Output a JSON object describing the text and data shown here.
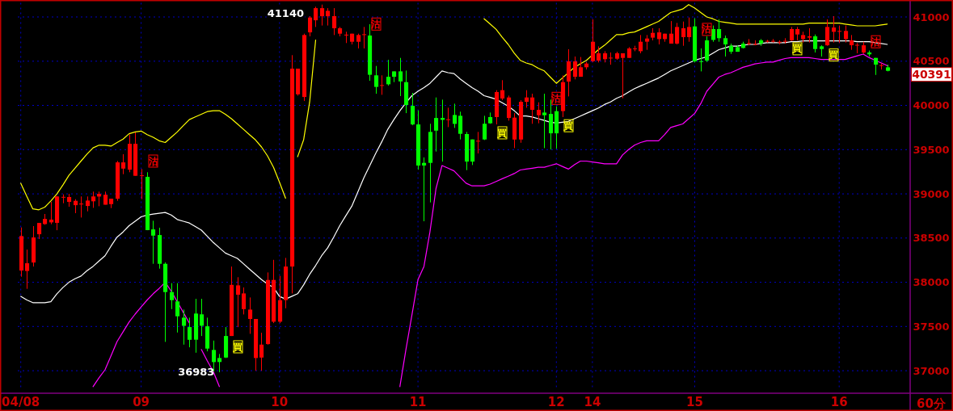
{
  "chart_data": {
    "type": "candlestick",
    "categories": [
      "04/08",
      null,
      null,
      null,
      null,
      null,
      null,
      null,
      null,
      null,
      null,
      null,
      null,
      null,
      null,
      null,
      null,
      null,
      null,
      null,
      "09",
      null,
      null,
      null,
      null,
      null,
      null,
      null,
      null,
      null,
      null,
      null,
      null,
      null,
      null,
      null,
      null,
      null,
      null,
      null,
      null,
      null,
      null,
      "10",
      null,
      null,
      null,
      null,
      null,
      null,
      null,
      null,
      null,
      null,
      null,
      null,
      null,
      null,
      null,
      null,
      null,
      null,
      null,
      null,
      null,
      null,
      "11",
      null,
      null,
      null,
      null,
      null,
      null,
      null,
      null,
      null,
      null,
      null,
      null,
      null,
      null,
      null,
      null,
      null,
      null,
      null,
      null,
      null,
      null,
      "12",
      null,
      null,
      null,
      null,
      null,
      "14",
      null,
      null,
      null,
      null,
      null,
      null,
      null,
      null,
      null,
      null,
      null,
      null,
      null,
      null,
      null,
      null,
      "15",
      null,
      null,
      null,
      null,
      null,
      null,
      null,
      null,
      null,
      null,
      null,
      null,
      null,
      null,
      null,
      null,
      null,
      null,
      null,
      null,
      null,
      null,
      null,
      "16",
      null,
      null,
      null,
      null,
      null,
      null,
      null,
      null
    ],
    "ohlc": [
      [
        38133,
        38620,
        38063,
        38522
      ],
      [
        38127,
        38370,
        37926,
        38215
      ],
      [
        38224,
        38635,
        38178,
        38507
      ],
      [
        38543,
        38671,
        38489,
        38671
      ],
      [
        38659,
        38772,
        38650,
        38717
      ],
      [
        38677,
        38909,
        38656,
        38708
      ],
      [
        38671,
        38976,
        38589,
        38970
      ],
      [
        38960,
        38994,
        38894,
        38966
      ],
      [
        38909,
        39000,
        38854,
        38964
      ],
      [
        38872,
        38939,
        38781,
        38921
      ],
      [
        38880,
        38970,
        38732,
        38890
      ],
      [
        38863,
        38970,
        38802,
        38924
      ],
      [
        38915,
        39025,
        38842,
        38970
      ],
      [
        38970,
        39025,
        38860,
        39000
      ],
      [
        38878,
        39025,
        38878,
        38990
      ],
      [
        38884,
        38945,
        38839,
        38945
      ],
      [
        38945,
        39371,
        38921,
        39356
      ],
      [
        39286,
        39448,
        39222,
        39356
      ],
      [
        39274,
        39670,
        39244,
        39566
      ],
      [
        39204,
        39694,
        39204,
        39566
      ],
      [
        39204,
        39280,
        38940,
        39210
      ],
      [
        39192,
        39244,
        38589,
        38589
      ],
      [
        38598,
        38696,
        38209,
        38528
      ],
      [
        38534,
        38617,
        38154,
        38209
      ],
      [
        38209,
        38224,
        37326,
        37889
      ],
      [
        37889,
        37990,
        37697,
        37798
      ],
      [
        37783,
        37990,
        37432,
        37615
      ],
      [
        37600,
        37691,
        37295,
        37508
      ],
      [
        37493,
        37600,
        37265,
        37350
      ],
      [
        37646,
        37813,
        37204,
        37350
      ],
      [
        37637,
        37813,
        37393,
        37508
      ],
      [
        37502,
        37600,
        37219,
        37250
      ],
      [
        37235,
        37341,
        36990,
        37098
      ],
      [
        37143,
        37189,
        36983,
        37098
      ],
      [
        37393,
        37493,
        37143,
        37149
      ],
      [
        37393,
        38178,
        37393,
        37971
      ],
      [
        37859,
        38057,
        37493,
        37965
      ],
      [
        37697,
        37941,
        37636,
        37874
      ],
      [
        37585,
        37828,
        37417,
        37691
      ],
      [
        37143,
        37585,
        37000,
        37585
      ],
      [
        37149,
        37429,
        37000,
        37295
      ],
      [
        37301,
        38111,
        37295,
        38026
      ],
      [
        37554,
        38254,
        37539,
        38026
      ],
      [
        37554,
        38072,
        37539,
        37798
      ],
      [
        37798,
        38276,
        37706,
        38178
      ],
      [
        38178,
        40568,
        37874,
        40416
      ],
      [
        40126,
        40416,
        40111,
        40416
      ],
      [
        40096,
        40811,
        40050,
        40796
      ],
      [
        40826,
        41009,
        40781,
        40994
      ],
      [
        40963,
        41116,
        40887,
        41100
      ],
      [
        41009,
        41140,
        40903,
        41100
      ],
      [
        41009,
        41100,
        40903,
        41070
      ],
      [
        40872,
        41100,
        40796,
        41009
      ],
      [
        40811,
        40887,
        40781,
        40872
      ],
      [
        40796,
        40833,
        40705,
        40800
      ],
      [
        40720,
        40811,
        40690,
        40811
      ],
      [
        40720,
        40811,
        40644,
        40796
      ],
      [
        40800,
        40887,
        40644,
        40805
      ],
      [
        40790,
        40918,
        40279,
        40346
      ],
      [
        40340,
        40446,
        40132,
        40209
      ],
      [
        40230,
        40340,
        40120,
        40230
      ],
      [
        40324,
        40516,
        40224,
        40239
      ],
      [
        40385,
        40385,
        40263,
        40324
      ],
      [
        40385,
        40537,
        40105,
        40272
      ],
      [
        40263,
        40394,
        39913,
        40005
      ],
      [
        39995,
        40142,
        39776,
        39785
      ],
      [
        39785,
        39944,
        39274,
        39320
      ],
      [
        39350,
        39411,
        38690,
        39320
      ],
      [
        39700,
        39792,
        38903,
        39350
      ],
      [
        39858,
        40090,
        39478,
        39715
      ],
      [
        39858,
        40065,
        39365,
        39837
      ],
      [
        39843,
        39974,
        39755,
        39843
      ],
      [
        39892,
        40020,
        39746,
        39792
      ],
      [
        39883,
        39929,
        39615,
        39679
      ],
      [
        39676,
        39700,
        39268,
        39365
      ],
      [
        39615,
        39615,
        39326,
        39365
      ],
      [
        39600,
        39700,
        39457,
        39600
      ],
      [
        39792,
        39883,
        39609,
        39615
      ],
      [
        39868,
        39919,
        39792,
        39798
      ],
      [
        39868,
        40172,
        39785,
        40151
      ],
      [
        40078,
        40285,
        40059,
        40172
      ],
      [
        39858,
        40111,
        39828,
        40090
      ],
      [
        39615,
        39913,
        39517,
        39862
      ],
      [
        39615,
        40059,
        39578,
        40041
      ],
      [
        40041,
        40172,
        39974,
        40090
      ],
      [
        39950,
        40132,
        39792,
        40090
      ],
      [
        39889,
        40035,
        39798,
        39950
      ],
      [
        39919,
        40132,
        39517,
        39889
      ],
      [
        39904,
        40065,
        39502,
        39685
      ],
      [
        39935,
        39989,
        39511,
        39685
      ],
      [
        39935,
        40339,
        39868,
        40263
      ],
      [
        40270,
        40635,
        40102,
        40498
      ],
      [
        40324,
        40553,
        40294,
        40498
      ],
      [
        40324,
        40547,
        40324,
        40431
      ],
      [
        40431,
        40492,
        40406,
        40473
      ],
      [
        40501,
        40973,
        40489,
        40720
      ],
      [
        40507,
        40668,
        40486,
        40589
      ],
      [
        40522,
        40613,
        40486,
        40589
      ],
      [
        40540,
        40598,
        40461,
        40540
      ],
      [
        40528,
        40607,
        40516,
        40589
      ],
      [
        40537,
        40589,
        40081,
        40589
      ],
      [
        40537,
        40659,
        40537,
        40644
      ],
      [
        40640,
        40674,
        40613,
        40644
      ],
      [
        40613,
        40796,
        40589,
        40720
      ],
      [
        40720,
        40796,
        40629,
        40756
      ],
      [
        40766,
        40872,
        40735,
        40820
      ],
      [
        40750,
        40872,
        40690,
        40826
      ],
      [
        40750,
        40811,
        40720,
        40811
      ],
      [
        40699,
        40954,
        40699,
        40811
      ],
      [
        40699,
        40933,
        40690,
        40887
      ],
      [
        40772,
        40948,
        40674,
        40872
      ],
      [
        40772,
        40994,
        40720,
        40887
      ],
      [
        40893,
        40985,
        40486,
        40498
      ],
      [
        40500,
        40644,
        40385,
        40498
      ],
      [
        40735,
        40781,
        40492,
        40507
      ],
      [
        40863,
        40903,
        40720,
        40741
      ],
      [
        40863,
        40973,
        40720,
        40760
      ],
      [
        40760,
        40790,
        40553,
        40690
      ],
      [
        40674,
        40699,
        40583,
        40607
      ],
      [
        40659,
        40680,
        40607,
        40607
      ],
      [
        40699,
        40720,
        40644,
        40650
      ],
      [
        40705,
        40750,
        40680,
        40705
      ],
      [
        40695,
        40735,
        40680,
        40695
      ],
      [
        40735,
        40750,
        40674,
        40699
      ],
      [
        40730,
        40741,
        40711,
        40730
      ],
      [
        40730,
        40750,
        40711,
        40730
      ],
      [
        40720,
        40735,
        40690,
        40720
      ],
      [
        40730,
        40760,
        40699,
        40730
      ],
      [
        40735,
        40887,
        40729,
        40863
      ],
      [
        40802,
        40887,
        40735,
        40863
      ],
      [
        40750,
        40833,
        40711,
        40796
      ],
      [
        40766,
        40872,
        40711,
        40781
      ],
      [
        40781,
        40802,
        40598,
        40638
      ],
      [
        40668,
        40680,
        40553,
        40638
      ],
      [
        40680,
        40973,
        40674,
        40887
      ],
      [
        40833,
        41009,
        40711,
        40881
      ],
      [
        40840,
        40903,
        40705,
        40842
      ],
      [
        40750,
        40903,
        40711,
        40842
      ],
      [
        40680,
        40796,
        40629,
        40735
      ],
      [
        40680,
        40705,
        40589,
        40685
      ],
      [
        40598,
        40720,
        40583,
        40680
      ],
      [
        40598,
        40620,
        40553,
        40577
      ],
      [
        40537,
        40537,
        40345,
        40461
      ],
      [
        40455,
        40473,
        40406,
        40455
      ],
      [
        40430,
        40461,
        40385,
        40391
      ]
    ],
    "colors": [
      "#ff0000",
      "#ff0000",
      "#ff0000",
      "#ff0000",
      "#ff0000",
      "#ff0000",
      "#ff0000",
      "#ff0000",
      "#ff0000",
      "#ff0000",
      "#ff0000",
      "#ff0000",
      "#ff0000",
      "#ff0000",
      "#ff0000",
      "#ff0000",
      "#ff0000",
      "#ff0000",
      "#ff0000",
      "#ff0000",
      "#ff0000",
      "#00ff00",
      "#00ff00",
      "#00ff00",
      "#00ff00",
      "#00ff00",
      "#00ff00",
      "#00ff00",
      "#00ff00",
      "#00ff00",
      "#00ff00",
      "#00ff00",
      "#00ff00",
      "#00ff00",
      "#00ff00",
      "#ff0000",
      "#ff0000",
      "#ff0000",
      "#ff0000",
      "#ff0000",
      "#ff0000",
      "#ff0000",
      "#ff0000",
      "#ff0000",
      "#ff0000",
      "#ff0000",
      "#ff0000",
      "#ff0000",
      "#ff0000",
      "#ff0000",
      "#ff0000",
      "#ff0000",
      "#ff0000",
      "#ff0000",
      "#ff0000",
      "#ff0000",
      "#ff0000",
      "#ff0000",
      "#00ff00",
      "#00ff00",
      "#ff0000",
      "#00ff00",
      "#00ff00",
      "#00ff00",
      "#00ff00",
      "#00ff00",
      "#00ff00",
      "#00ff00",
      "#00ff00",
      "#00ff00",
      "#00ff00",
      "#ff0000",
      "#00ff00",
      "#00ff00",
      "#00ff00",
      "#00ff00",
      "#ff0000",
      "#00ff00",
      "#00ff00",
      "#ff0000",
      "#ff0000",
      "#ff0000",
      "#ff0000",
      "#ff0000",
      "#ff0000",
      "#ff0000",
      "#ff0000",
      "#00ff00",
      "#00ff00",
      "#00ff00",
      "#ff0000",
      "#ff0000",
      "#ff0000",
      "#ff0000",
      "#ff0000",
      "#ff0000",
      "#ff0000",
      "#ff0000",
      "#ff0000",
      "#ff0000",
      "#ff0000",
      "#ff0000",
      "#ff0000",
      "#ff0000",
      "#ff0000",
      "#ff0000",
      "#ff0000",
      "#ff0000",
      "#ff0000",
      "#ff0000",
      "#ff0000",
      "#ff0000",
      "#00ff00",
      "#00ff00",
      "#00ff00",
      "#00ff00",
      "#00ff00",
      "#00ff00",
      "#00ff00",
      "#00ff00",
      "#00ff00",
      "#ff0000",
      "#ff0000",
      "#00ff00",
      "#ff0000",
      "#ff0000",
      "#ff0000",
      "#ff0000",
      "#ff0000",
      "#ff0000",
      "#ff0000",
      "#ff0000",
      "#00ff00",
      "#00ff00",
      "#ff0000",
      "#ff0000",
      "#ff0000",
      "#ff0000",
      "#ff0000",
      "#ff0000",
      "#ff0000",
      "#00ff00",
      "#00ff00",
      "#ff0000",
      "#00ff00"
    ],
    "series": [
      {
        "type": "line",
        "color": "#ffff00",
        "values": [
          39120,
          38970,
          38830,
          38820,
          38850,
          38920,
          39000,
          39100,
          39210,
          39290,
          39370,
          39450,
          39520,
          39550,
          39550,
          39540,
          39580,
          39620,
          39680,
          39700,
          39710,
          39670,
          39640,
          39600,
          39580,
          39640,
          39700,
          39770,
          39840,
          39870,
          39900,
          39930,
          39940,
          39940,
          39900,
          39850,
          39790,
          39730,
          39670,
          39610,
          39530,
          39430,
          39300,
          39130,
          38950,
          null,
          39420,
          39610,
          40040,
          40740,
          null,
          null,
          null,
          null,
          null,
          null,
          null,
          null,
          null,
          null,
          null,
          null,
          null,
          null,
          null,
          null,
          null,
          null,
          null,
          null,
          null,
          null,
          null,
          null,
          null,
          null,
          null,
          40980,
          40920,
          40860,
          40770,
          40690,
          40590,
          40510,
          40480,
          40460,
          40420,
          40390,
          40320,
          40250,
          40310,
          40370,
          40430,
          40470,
          40510,
          40570,
          40630,
          40680,
          40740,
          40800,
          40800,
          40820,
          40830,
          40860,
          40890,
          40920,
          40950,
          41000,
          41050,
          41070,
          41090,
          41140,
          41100,
          41050,
          41000,
          40980,
          40950,
          40940,
          40930,
          40920,
          40920,
          40920,
          40920,
          40920,
          40920,
          40920,
          40920,
          40920,
          40920,
          40920,
          40920,
          40930,
          40930,
          40930,
          40930,
          40930,
          40930,
          40920,
          40910,
          40900,
          40900,
          40900,
          40900,
          40910,
          40920
        ]
      },
      {
        "type": "line",
        "color": "#ffffff",
        "values": [
          37840,
          37800,
          37770,
          37770,
          37770,
          37780,
          37870,
          37940,
          38000,
          38040,
          38070,
          38130,
          38180,
          38240,
          38300,
          38410,
          38510,
          38570,
          38640,
          38690,
          38740,
          38760,
          38770,
          38780,
          38790,
          38760,
          38710,
          38690,
          38670,
          38630,
          38590,
          38520,
          38450,
          38390,
          38330,
          38300,
          38270,
          38210,
          38150,
          38090,
          38030,
          37980,
          37940,
          37840,
          37810,
          37840,
          37870,
          37970,
          38090,
          38190,
          38300,
          38390,
          38510,
          38640,
          38750,
          38860,
          39020,
          39180,
          39320,
          39460,
          39590,
          39730,
          39840,
          39940,
          40030,
          40110,
          40160,
          40200,
          40250,
          40320,
          40390,
          40370,
          40360,
          40300,
          40250,
          40200,
          40160,
          40110,
          40090,
          40070,
          40030,
          39990,
          39940,
          39880,
          39880,
          39870,
          39850,
          39830,
          39810,
          39800,
          39810,
          39820,
          39850,
          39880,
          39910,
          39940,
          39970,
          40010,
          40040,
          40080,
          40110,
          40150,
          40190,
          40220,
          40250,
          40280,
          40310,
          40350,
          40390,
          40420,
          40450,
          40480,
          40510,
          40530,
          40550,
          40590,
          40630,
          40650,
          40670,
          40670,
          40680,
          40690,
          40690,
          40700,
          40710,
          40710,
          40710,
          40710,
          40720,
          40720,
          40730,
          40730,
          40730,
          40730,
          40730,
          40730,
          40730,
          40730,
          40730,
          40720,
          40720,
          40720,
          40710,
          40700,
          40690
        ]
      },
      {
        "type": "line",
        "color": "#ff00ff",
        "values": [
          null,
          null,
          null,
          null,
          null,
          null,
          null,
          null,
          null,
          null,
          null,
          null,
          36820,
          36920,
          37010,
          37170,
          37330,
          37440,
          37550,
          37640,
          37720,
          37800,
          37870,
          37930,
          38000,
          37900,
          37780,
          37660,
          37540,
          null,
          37240,
          37110,
          36990,
          36820,
          null,
          null,
          null,
          null,
          null,
          null,
          null,
          null,
          null,
          null,
          null,
          null,
          null,
          null,
          null,
          null,
          null,
          null,
          null,
          null,
          null,
          null,
          null,
          null,
          null,
          null,
          null,
          null,
          null,
          36820,
          37240,
          37630,
          38030,
          38180,
          38570,
          39060,
          39320,
          39290,
          39260,
          39190,
          39120,
          39090,
          39090,
          39090,
          39110,
          39140,
          39170,
          39200,
          39230,
          39270,
          39280,
          39290,
          39300,
          39300,
          39320,
          39340,
          39310,
          39280,
          39330,
          39370,
          39370,
          39360,
          39350,
          39340,
          39340,
          39340,
          39440,
          39500,
          39550,
          39580,
          39600,
          39600,
          39600,
          39670,
          39750,
          39770,
          39790,
          39850,
          39910,
          40020,
          40160,
          40240,
          40320,
          40350,
          40370,
          40400,
          40430,
          40450,
          40470,
          40480,
          40490,
          40490,
          40510,
          40530,
          40540,
          40540,
          40540,
          40540,
          40530,
          40520,
          40520,
          40520,
          40520,
          40520,
          40540,
          40560,
          40580,
          40540,
          40510,
          40480,
          40450
        ]
      },
      {
        "type": "scatter",
        "name": "沽",
        "color": "#ff0000",
        "values": [
          null,
          null,
          null,
          null,
          null,
          null,
          null,
          null,
          null,
          null,
          null,
          null,
          null,
          null,
          null,
          null,
          null,
          null,
          null,
          null,
          null,
          null,
          39370,
          null,
          null,
          null,
          null,
          null,
          null,
          null,
          null,
          null,
          null,
          null,
          null,
          null,
          null,
          null,
          null,
          null,
          null,
          null,
          null,
          null,
          null,
          null,
          null,
          null,
          null,
          null,
          null,
          null,
          null,
          null,
          null,
          null,
          null,
          null,
          null,
          40920,
          null,
          null,
          null,
          null,
          null,
          null,
          null,
          null,
          null,
          null,
          null,
          null,
          null,
          null,
          null,
          null,
          null,
          null,
          null,
          null,
          null,
          null,
          null,
          null,
          null,
          null,
          null,
          null,
          null,
          40080,
          null,
          null,
          null,
          null,
          null,
          null,
          null,
          null,
          null,
          null,
          null,
          null,
          null,
          null,
          null,
          null,
          null,
          null,
          null,
          null,
          null,
          null,
          null,
          null,
          40860,
          null,
          null,
          null,
          null,
          null,
          null,
          null,
          null,
          null,
          null,
          null,
          null,
          null,
          null,
          null,
          null,
          null,
          null,
          null,
          null,
          null,
          null,
          null,
          null,
          null,
          null,
          null,
          40720,
          null,
          null
        ]
      },
      {
        "type": "scatter",
        "name": "買",
        "color": "#ffff00",
        "values": [
          null,
          null,
          null,
          null,
          null,
          null,
          null,
          null,
          null,
          null,
          null,
          null,
          null,
          null,
          null,
          null,
          null,
          null,
          null,
          null,
          null,
          null,
          null,
          null,
          null,
          null,
          null,
          null,
          null,
          null,
          null,
          null,
          null,
          null,
          null,
          null,
          37270,
          null,
          null,
          null,
          null,
          null,
          null,
          null,
          null,
          null,
          null,
          null,
          null,
          null,
          null,
          null,
          null,
          null,
          null,
          null,
          null,
          null,
          null,
          null,
          null,
          null,
          null,
          null,
          null,
          null,
          null,
          null,
          null,
          null,
          null,
          null,
          null,
          null,
          null,
          null,
          null,
          null,
          null,
          null,
          39690,
          null,
          null,
          null,
          null,
          null,
          null,
          null,
          null,
          null,
          null,
          39770,
          null,
          null,
          null,
          null,
          null,
          null,
          null,
          null,
          null,
          null,
          null,
          null,
          null,
          null,
          null,
          null,
          null,
          null,
          null,
          null,
          null,
          null,
          null,
          null,
          null,
          null,
          null,
          null,
          null,
          null,
          null,
          null,
          null,
          null,
          null,
          null,
          null,
          40640,
          null,
          null,
          null,
          null,
          null,
          40570,
          null,
          null,
          null,
          null,
          null,
          null,
          null,
          null,
          null
        ]
      }
    ],
    "ylim": [
      36800,
      41160
    ],
    "yticks": [
      37000,
      37500,
      38000,
      38500,
      39000,
      39500,
      40000,
      40500,
      41000
    ],
    "grid": true,
    "annotations": [
      "41140",
      "36983",
      "40391",
      "60分"
    ]
  }
}
